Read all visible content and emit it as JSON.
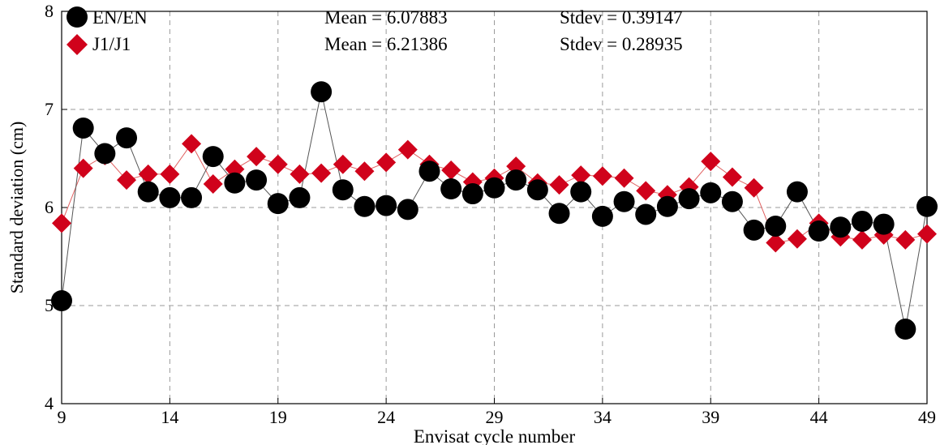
{
  "chart_data": {
    "type": "line",
    "title": "",
    "xlabel": "Envisat cycle number",
    "ylabel": "Standard deviation (cm)",
    "xlim": [
      9,
      49
    ],
    "ylim": [
      4,
      8
    ],
    "xticks": [
      "9",
      "14",
      "19",
      "24",
      "29",
      "34",
      "39",
      "44",
      "49"
    ],
    "yticks": [
      "4",
      "5",
      "6",
      "7",
      "8"
    ],
    "grid": true,
    "legend_position": "top-left",
    "x": [
      9,
      10,
      11,
      12,
      13,
      14,
      15,
      16,
      17,
      18,
      19,
      20,
      21,
      22,
      23,
      24,
      25,
      26,
      27,
      28,
      29,
      30,
      31,
      32,
      33,
      34,
      35,
      36,
      37,
      38,
      39,
      40,
      41,
      42,
      43,
      44,
      45,
      46,
      47,
      48,
      49
    ],
    "series": [
      {
        "name": "EN/EN",
        "marker": "circle",
        "color": "#000000",
        "line_color": "#555555",
        "mean_label": "Mean = 6.07883",
        "stdev_label": "Stdev = 0.39147",
        "values": [
          5.05,
          6.81,
          6.55,
          6.71,
          6.16,
          6.1,
          6.1,
          6.52,
          6.25,
          6.28,
          6.04,
          6.1,
          7.18,
          6.18,
          6.01,
          6.02,
          5.98,
          6.37,
          6.19,
          6.14,
          6.2,
          6.28,
          6.18,
          5.94,
          6.16,
          5.91,
          6.06,
          5.93,
          6.01,
          6.09,
          6.15,
          6.06,
          5.77,
          5.81,
          6.16,
          5.76,
          5.8,
          5.86,
          5.83,
          4.76,
          6.01
        ]
      },
      {
        "name": "J1/J1",
        "marker": "diamond",
        "color": "#d0021b",
        "line_color": "#e06060",
        "mean_label": "Mean = 6.21386",
        "stdev_label": "Stdev = 0.28935",
        "values": [
          5.84,
          6.4,
          6.53,
          6.28,
          6.34,
          6.34,
          6.65,
          6.24,
          6.39,
          6.52,
          6.44,
          6.34,
          6.35,
          6.44,
          6.37,
          6.46,
          6.59,
          6.44,
          6.38,
          6.26,
          6.3,
          6.42,
          6.25,
          6.23,
          6.33,
          6.32,
          6.3,
          6.17,
          6.13,
          6.21,
          6.47,
          6.31,
          6.2,
          5.64,
          5.68,
          5.84,
          5.7,
          5.67,
          5.72,
          5.67,
          5.73
        ]
      }
    ]
  }
}
